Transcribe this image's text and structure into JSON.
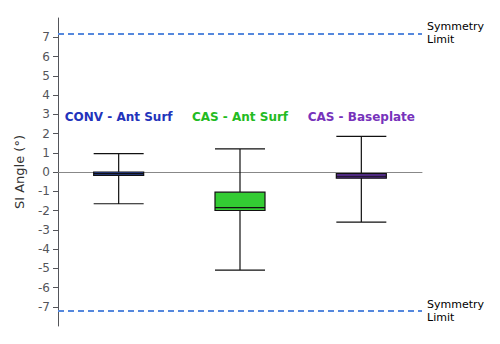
{
  "chart_data": {
    "type": "boxplot",
    "ylabel": "SI Angle (°)",
    "categories": [
      "CONV - Ant Surf",
      "CAS - Ant Surf",
      "CAS - Baseplate"
    ],
    "boxes": [
      {
        "whisker_low": -1.65,
        "q1": -0.18,
        "median": -0.08,
        "q3": 0.0,
        "whisker_high": 0.95
      },
      {
        "whisker_low": -5.1,
        "q1": -2.0,
        "median": -1.85,
        "q3": -1.05,
        "whisker_high": 1.2
      },
      {
        "whisker_low": -2.6,
        "q1": -0.32,
        "median": -0.22,
        "q3": -0.08,
        "whisker_high": 1.85
      }
    ],
    "colors": [
      "#3355cc",
      "#33cc33",
      "#6633aa"
    ],
    "edge_color": "#111111",
    "annotations": [
      {
        "text": "CONV - Ant Surf",
        "color": "#2233bb"
      },
      {
        "text": "CAS - Ant Surf",
        "color": "#22bb22"
      },
      {
        "text": "CAS - Baseplate",
        "color": "#7733bb"
      }
    ],
    "symmetry_lines": {
      "values": [
        7.2,
        -7.2
      ],
      "label": "Symmetry\nLimit",
      "color": "#5588dd",
      "line_style": "dashed"
    },
    "ylim": [
      -8,
      8
    ],
    "yticks": [
      -7,
      -6,
      -5,
      -4,
      -3,
      -2,
      -1,
      0,
      1,
      2,
      3,
      4,
      5,
      6,
      7
    ],
    "grid": false,
    "tick_labels": "y"
  }
}
